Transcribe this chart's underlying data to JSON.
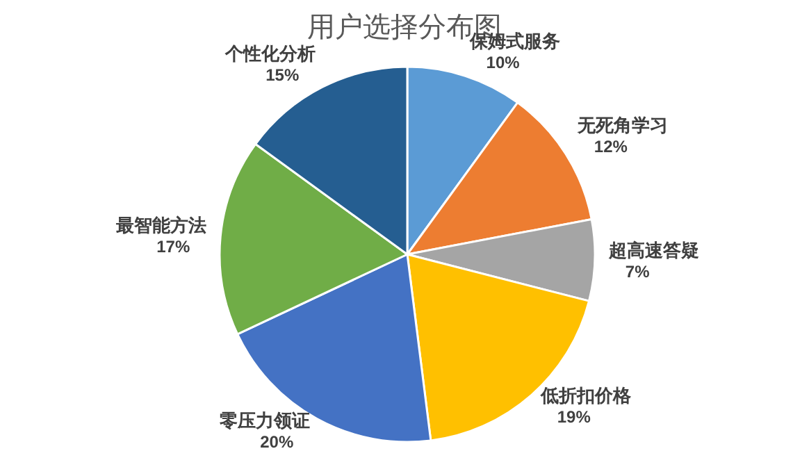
{
  "chart_data": {
    "type": "pie",
    "title": "用户选择分布图",
    "categories": [
      "保姆式服务",
      "无死角学习",
      "超高速答疑",
      "低折扣价格",
      "零压力领证",
      "最智能方法",
      "个性化分析"
    ],
    "values": [
      10,
      12,
      7,
      19,
      20,
      17,
      15
    ],
    "colors": [
      "#5b9bd5",
      "#ed7d31",
      "#a5a5a5",
      "#ffc000",
      "#4472c4",
      "#70ad47",
      "#255e91"
    ],
    "value_labels": [
      "10%",
      "12%",
      "7%",
      "19%",
      "20%",
      "17%",
      "15%"
    ]
  }
}
